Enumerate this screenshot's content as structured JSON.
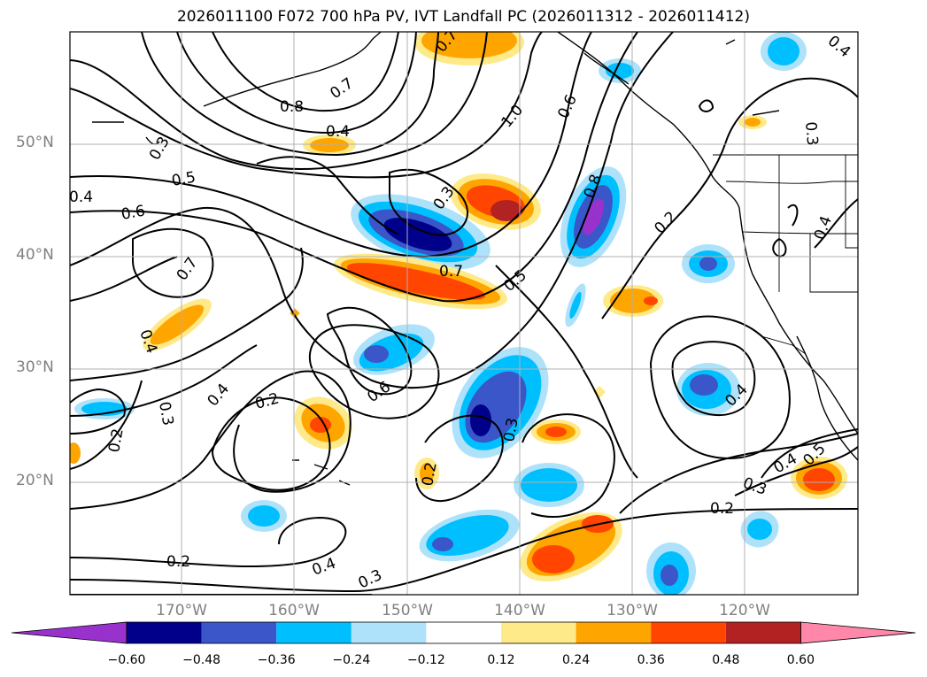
{
  "title": "2026011100 F072 700 hPa PV, IVT Landfall PC (2026011312 - 2026011412)",
  "lat_labels": [
    "50°N",
    "40°N",
    "30°N",
    "20°N"
  ],
  "lon_labels": [
    "170°W",
    "160°W",
    "150°W",
    "140°W",
    "130°W",
    "120°W"
  ],
  "colorbar": {
    "ticks": [
      "−0.60",
      "−0.48",
      "−0.36",
      "−0.24",
      "−0.12",
      "0.12",
      "0.24",
      "0.36",
      "0.48",
      "0.60"
    ],
    "colors": [
      "#9932cc",
      "#00008b",
      "#3a56c8",
      "#00bfff",
      "#aee2fb",
      "#ffffff",
      "#ffea8a",
      "#ffa500",
      "#ff4500",
      "#b22222",
      "#ff88aa"
    ]
  },
  "contour_labels": [
    "0.8",
    "0.7",
    "0.7",
    "1.0",
    "0.6",
    "0.3",
    "0.4",
    "0.5",
    "0.6",
    "0.4",
    "0.3",
    "0.7",
    "0.8",
    "0.7",
    "0.5",
    "0.2",
    "0.4",
    "0.6",
    "0.4",
    "0.2",
    "0.3",
    "0.2",
    "0.3",
    "0.2",
    "0.2",
    "0.4",
    "0.3",
    "0.2",
    "0.3",
    "0.4",
    "0.5",
    "0.4",
    "0.4",
    "0.3",
    "0.4"
  ]
}
